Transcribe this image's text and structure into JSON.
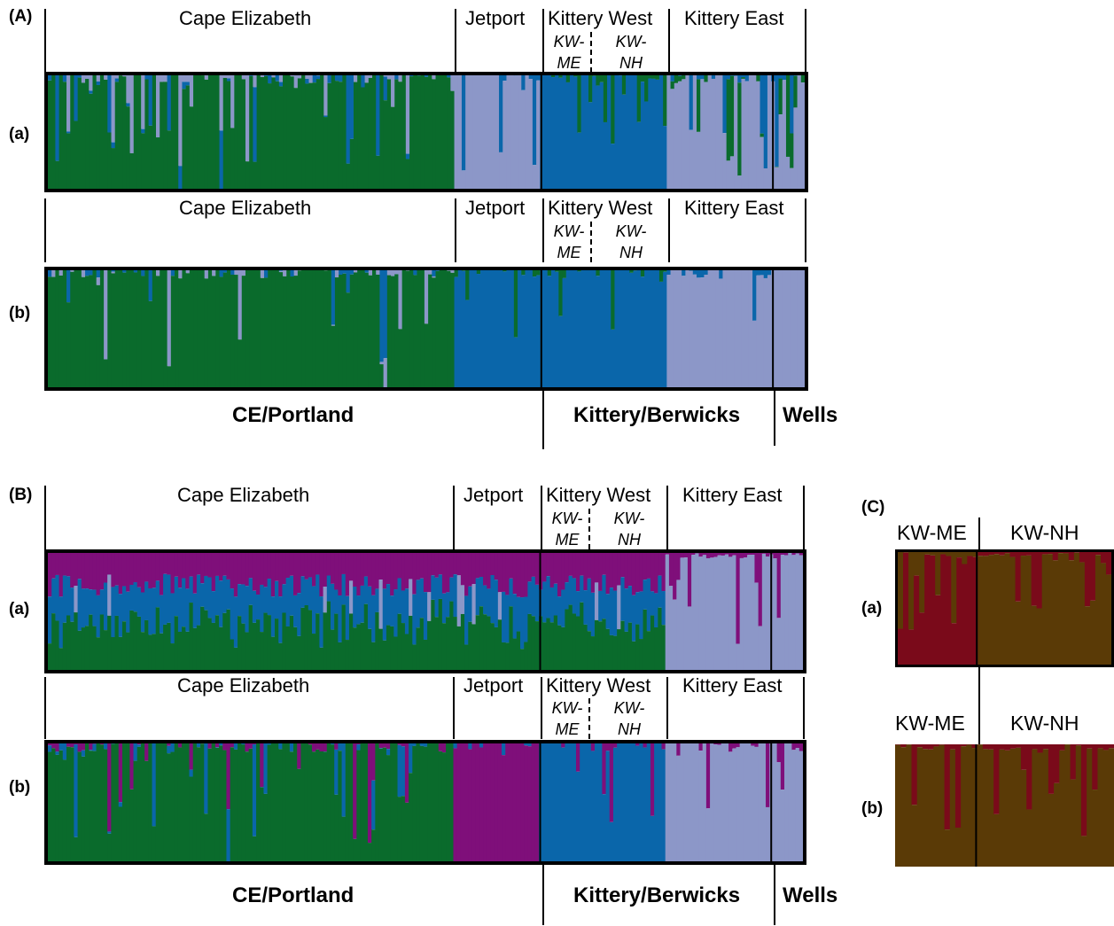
{
  "panels": {
    "A": {
      "label": "(A)",
      "rows": {
        "a": "(a)",
        "b": "(b)"
      }
    },
    "B": {
      "label": "(B)",
      "rows": {
        "a": "(a)",
        "b": "(b)"
      }
    },
    "C": {
      "label": "(C)",
      "rows": {
        "a": "(a)",
        "b": "(b)"
      }
    }
  },
  "sites": {
    "cape_elizabeth": "Cape Elizabeth",
    "jetport": "Jetport",
    "kittery_west": "Kittery West",
    "kittery_east": "Kittery East",
    "kw_me": "KW-\nME",
    "kw_nh": "KW-\nNH"
  },
  "regions": {
    "ce_portland": "CE/Portland",
    "kittery_berwicks": "Kittery/Berwicks",
    "wells": "Wells"
  },
  "panel_c": {
    "kw_me": "KW-ME",
    "kw_nh": "KW-NH"
  },
  "colors": {
    "green": "#0a6b2c",
    "blue": "#0a66aa",
    "lavender": "#8c97c8",
    "purple": "#7f0f7a",
    "maroon": "#7a0a1a",
    "olive": "#5a3a06",
    "border": "#000000"
  }
}
